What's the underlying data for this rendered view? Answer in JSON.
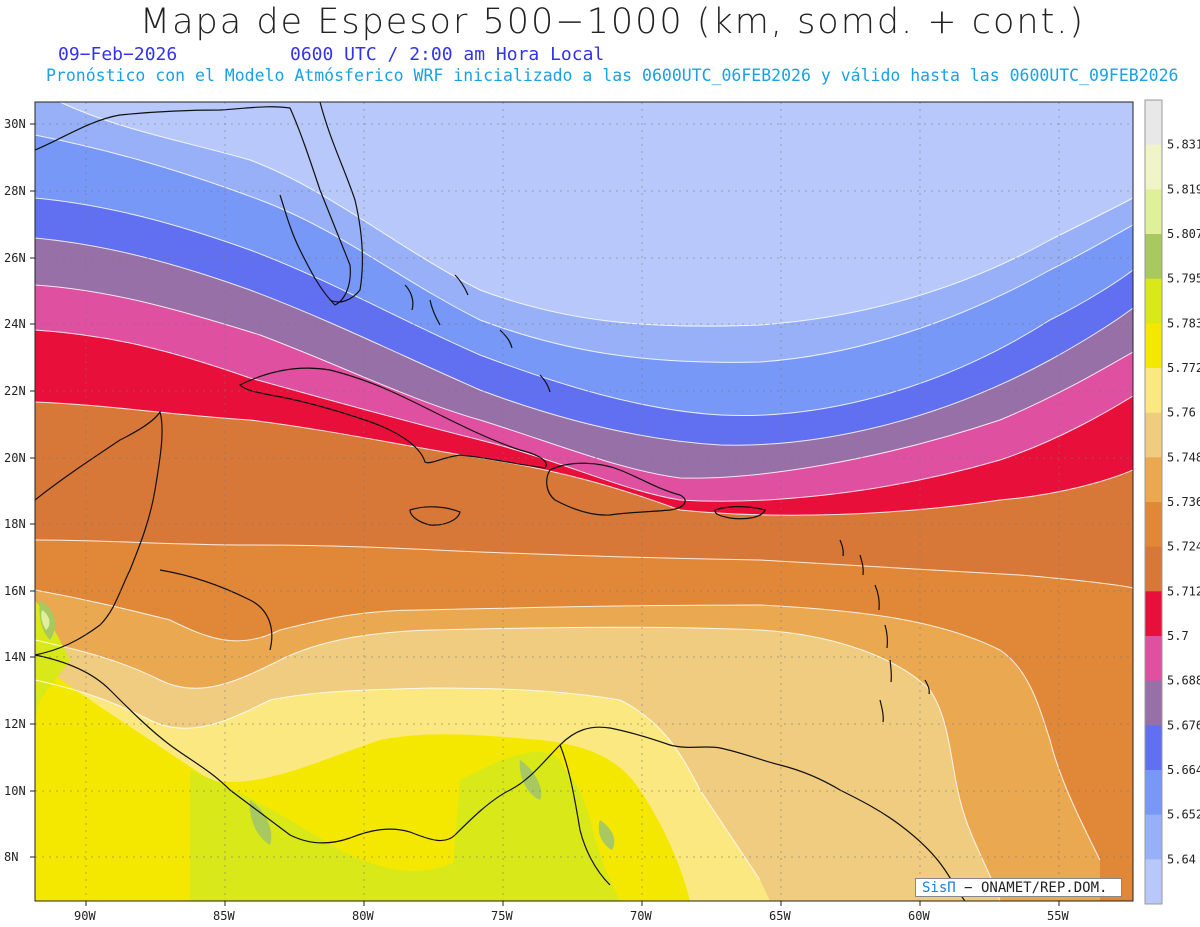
{
  "header": {
    "title": "Mapa de Espesor 500−1000 (km, somd. + cont.)",
    "date": "09−Feb−2026",
    "time": "0600 UTC / 2:00 am Hora Local",
    "forecast": "Pronóstico con el Modelo Atmósferico WRF inicializado a las 0600UTC_06FEB2026 y válido hasta las  0600UTC_09FEB2026"
  },
  "map": {
    "lat_labels": [
      "30N",
      "28N",
      "26N",
      "24N",
      "22N",
      "20N",
      "18N",
      "16N",
      "14N",
      "12N",
      "10N",
      "8N"
    ],
    "lon_labels": [
      "90W",
      "85W",
      "80W",
      "75W",
      "70W",
      "65W",
      "60W",
      "55W"
    ],
    "lat_values": [
      30,
      28,
      26,
      24,
      22,
      20,
      18,
      16,
      14,
      12,
      10,
      8
    ],
    "lon_values": [
      -90,
      -85,
      -80,
      -75,
      -70,
      -65,
      -60,
      -55
    ]
  },
  "colorbar": {
    "levels": [
      "5.831",
      "5.819",
      "5.807",
      "5.795",
      "5.783",
      "5.772",
      "5.76",
      "5.748",
      "5.736",
      "5.724",
      "5.712",
      "5.7",
      "5.688",
      "5.676",
      "5.664",
      "5.652",
      "5.64"
    ],
    "colors": [
      "#e8e8e8",
      "#f0f5c8",
      "#e0f09a",
      "#a8c860",
      "#d8e818",
      "#f5e800",
      "#fbe880",
      "#f0cc80",
      "#eaa850",
      "#e08838",
      "#d87838",
      "#e8103a",
      "#e050a0",
      "#9870a8",
      "#6070f0",
      "#7898f8",
      "#98b0f8",
      "#b8c8fa"
    ]
  },
  "credit": {
    "brand": "SisΠ",
    "text": " − ONAMET/REP.DOM."
  }
}
